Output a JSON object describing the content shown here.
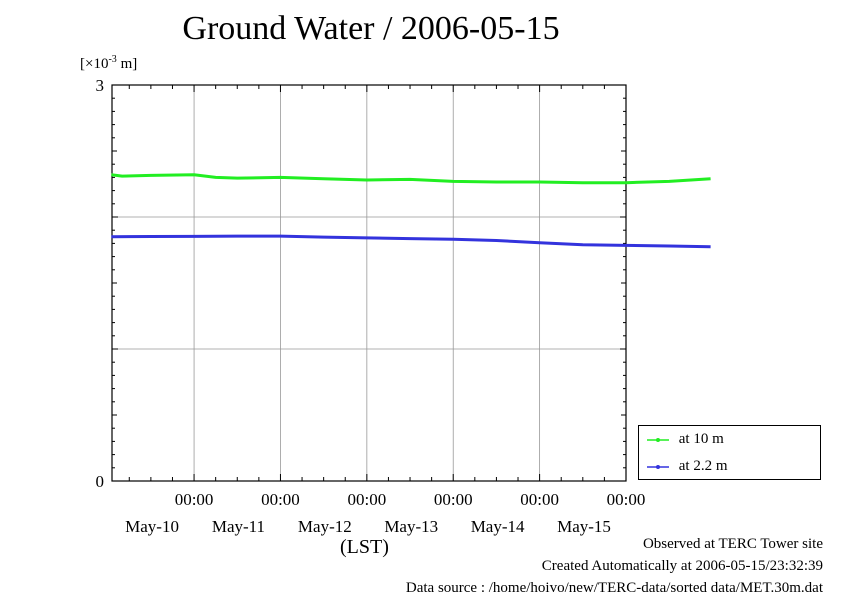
{
  "title": "Ground Water / 2006-05-15",
  "unit": {
    "prefix": "[×10",
    "exp": "-3",
    "suffix": " m]"
  },
  "xaxis_title": "(LST)",
  "footer": {
    "line1": "Observed at TERC Tower site",
    "line2": "Created Automatically at 2006-05-15/23:32:39",
    "line3": "Data source : /home/hoivo/new/TERC-data/sorted  data/MET.30m.dat"
  },
  "colors": {
    "series_10m": "#22ee22",
    "series_2_2m": "#3333dd",
    "grid": "#999999"
  },
  "chart_data": {
    "type": "line",
    "title": "Ground Water / 2006-05-15",
    "ylabel": "[×10-3 m]",
    "xlabel": "(LST)",
    "ylim": [
      0,
      3
    ],
    "yticks": [
      0,
      3
    ],
    "ygrid": [
      1,
      2
    ],
    "xrange_days": [
      -0.95,
      5.0
    ],
    "xticks": [
      {
        "time": "00:00",
        "date": "May-10"
      },
      {
        "time": "00:00",
        "date": "May-11"
      },
      {
        "time": "00:00",
        "date": "May-12"
      },
      {
        "time": "00:00",
        "date": "May-13"
      },
      {
        "time": "00:00",
        "date": "May-14"
      },
      {
        "time": "00:00",
        "date": "May-15"
      }
    ],
    "grid": true,
    "legend_position": "bottom-right",
    "series": [
      {
        "name": "at 10 m",
        "x": [
          "2006-05-09 01:00",
          "2006-05-09 04:00",
          "2006-05-09 12:00",
          "2006-05-10 00:00",
          "2006-05-10 06:00",
          "2006-05-10 12:00",
          "2006-05-11 00:00",
          "2006-05-11 12:00",
          "2006-05-12 00:00",
          "2006-05-12 12:00",
          "2006-05-13 00:00",
          "2006-05-13 12:00",
          "2006-05-14 00:00",
          "2006-05-14 12:00",
          "2006-05-15 00:00",
          "2006-05-15 12:00",
          "2006-05-15 23:30"
        ],
        "values": [
          2.32,
          2.31,
          2.315,
          2.32,
          2.3,
          2.295,
          2.3,
          2.29,
          2.28,
          2.285,
          2.27,
          2.265,
          2.265,
          2.26,
          2.26,
          2.27,
          2.29
        ]
      },
      {
        "name": "at 2.2 m",
        "x": [
          "2006-05-09 01:00",
          "2006-05-09 12:00",
          "2006-05-10 00:00",
          "2006-05-10 12:00",
          "2006-05-11 00:00",
          "2006-05-11 12:00",
          "2006-05-12 00:00",
          "2006-05-12 12:00",
          "2006-05-13 00:00",
          "2006-05-13 12:00",
          "2006-05-14 00:00",
          "2006-05-14 12:00",
          "2006-05-15 00:00",
          "2006-05-15 12:00",
          "2006-05-15 23:30"
        ],
        "values": [
          1.85,
          1.852,
          1.853,
          1.855,
          1.855,
          1.848,
          1.842,
          1.836,
          1.832,
          1.822,
          1.805,
          1.79,
          1.785,
          1.78,
          1.775
        ]
      }
    ]
  }
}
